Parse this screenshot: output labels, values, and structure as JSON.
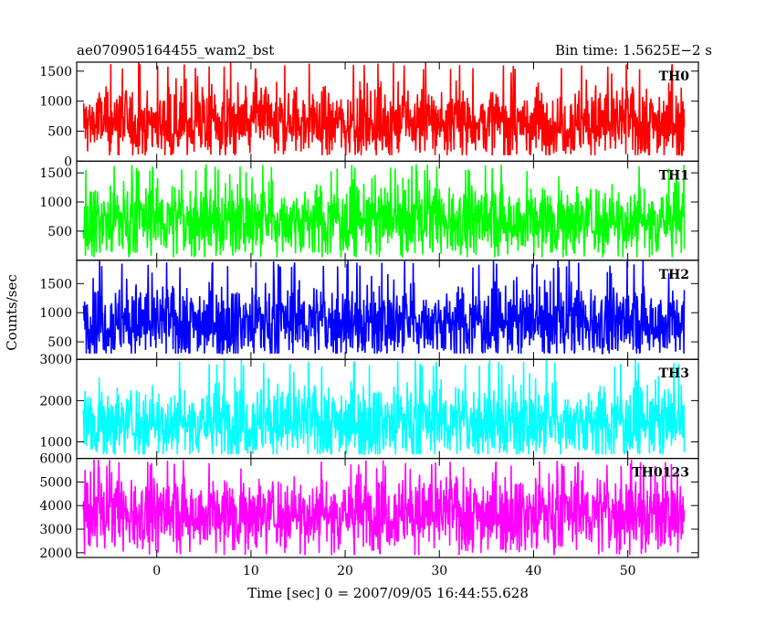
{
  "header": {
    "title": "ae070905164455_wam2_bst",
    "bin_time": "Bin time: 1.5625E−2 s"
  },
  "chart_data": {
    "type": "line",
    "xlabel": "Time [sec] 0 = 2007/09/05 16:44:55.628",
    "ylabel": "Counts/sec",
    "xlim": [
      -8.5,
      57.5
    ],
    "x_ticks": [
      0,
      10,
      20,
      30,
      40,
      50
    ],
    "data_x_range": [
      -7.8,
      56.0
    ],
    "grid": false,
    "panels": [
      {
        "name": "TH0",
        "color": "#ff0000",
        "ylim": [
          0,
          1650
        ],
        "y_ticks": [
          0,
          500,
          1000,
          1500
        ],
        "mean": 650,
        "range": [
          100,
          1650
        ]
      },
      {
        "name": "TH1",
        "color": "#00ff00",
        "ylim": [
          0,
          1700
        ],
        "y_ticks": [
          500,
          1000,
          1500
        ],
        "mean": 700,
        "range": [
          50,
          1650
        ]
      },
      {
        "name": "TH2",
        "color": "#0000ff",
        "ylim": [
          200,
          1900
        ],
        "y_ticks": [
          500,
          1000,
          1500
        ],
        "mean": 850,
        "range": [
          300,
          1900
        ]
      },
      {
        "name": "TH3",
        "color": "#00ffff",
        "ylim": [
          600,
          3000
        ],
        "y_ticks": [
          1000,
          2000,
          3000
        ],
        "mean": 1500,
        "range": [
          700,
          3000
        ]
      },
      {
        "name": "TH0123",
        "color": "#ff00ff",
        "ylim": [
          1800,
          6000
        ],
        "y_ticks": [
          2000,
          3000,
          4000,
          5000,
          6000
        ],
        "mean": 3700,
        "range": [
          1900,
          5950
        ]
      }
    ]
  }
}
